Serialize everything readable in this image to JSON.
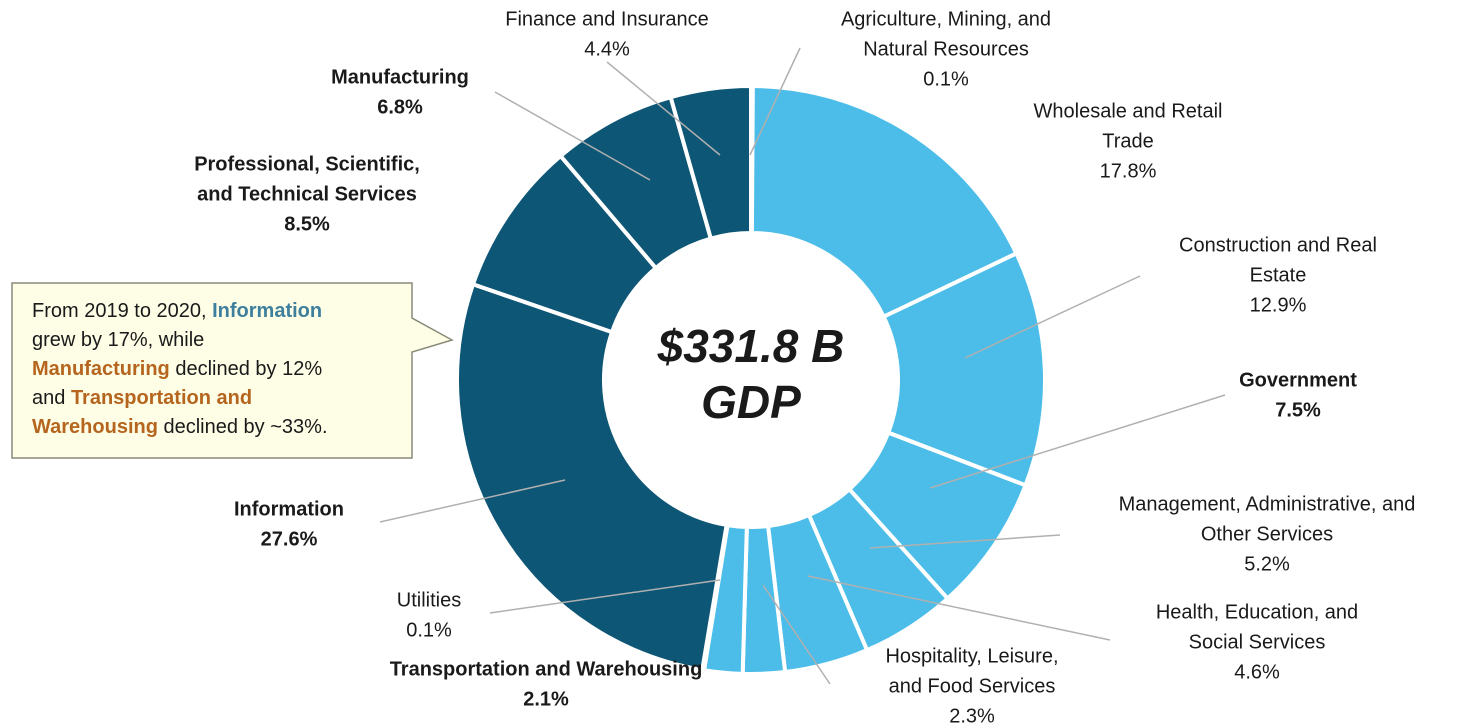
{
  "chart_data": {
    "type": "donut",
    "center_label": [
      "$331.8 B",
      "GDP"
    ],
    "categories": [
      [
        "Agriculture, Mining, and",
        "Natural Resources"
      ],
      [
        "Wholesale and Retail",
        "Trade"
      ],
      [
        "Construction and Real",
        "Estate"
      ],
      [
        "Government"
      ],
      [
        "Management, Administrative, and",
        "Other Services"
      ],
      [
        "Health, Education, and",
        "Social Services"
      ],
      [
        "Hospitality, Leisure,",
        "and Food Services"
      ],
      [
        "Transportation and Warehousing"
      ],
      [
        "Utilities"
      ],
      [
        "Information"
      ],
      [
        "Professional, Scientific,",
        "and Technical Services"
      ],
      [
        "Manufacturing"
      ],
      [
        "Finance and Insurance"
      ]
    ],
    "values": [
      0.1,
      17.8,
      12.9,
      7.5,
      5.2,
      4.6,
      2.3,
      2.1,
      0.1,
      27.6,
      8.5,
      6.8,
      4.4
    ],
    "value_labels": [
      "0.1%",
      "17.8%",
      "12.9%",
      "7.5%",
      "5.2%",
      "4.6%",
      "2.3%",
      "2.1%",
      "0.1%",
      "27.6%",
      "8.5%",
      "6.8%",
      "4.4%"
    ],
    "colors": [
      "#4bbde8",
      "#4bbde8",
      "#4bbde8",
      "#4bbde8",
      "#4bbde8",
      "#4bbde8",
      "#4bbde8",
      "#4bbde8",
      "#0e5675",
      "#0e5675",
      "#0e5675",
      "#0e5675",
      "#0e5675"
    ],
    "label_colors": [
      "#1a1a1a",
      "#1a1a1a",
      "#1a1a1a",
      "#b5651d",
      "#1a1a1a",
      "#1a1a1a",
      "#1a1a1a",
      "#b5651d",
      "#1a1a1a",
      "#3e7f9e",
      "#3e7f9e",
      "#b5651d",
      "#1a1a1a"
    ],
    "annotation": {
      "lines": [
        [
          {
            "text": "From 2019 to 2020, "
          },
          {
            "text": "Information",
            "color": "#3e7f9e"
          }
        ],
        [
          {
            "text": "grew by 17%, while"
          }
        ],
        [
          {
            "text": "Manufacturing",
            "color": "#b5651d"
          },
          {
            "text": " declined by 12%"
          }
        ],
        [
          {
            "text": "and "
          },
          {
            "text": "Transportation and",
            "color": "#b5651d"
          }
        ],
        [
          {
            "text": "Warehousing",
            "color": "#b5651d"
          },
          {
            "text": " declined by ~33%."
          }
        ]
      ]
    }
  }
}
